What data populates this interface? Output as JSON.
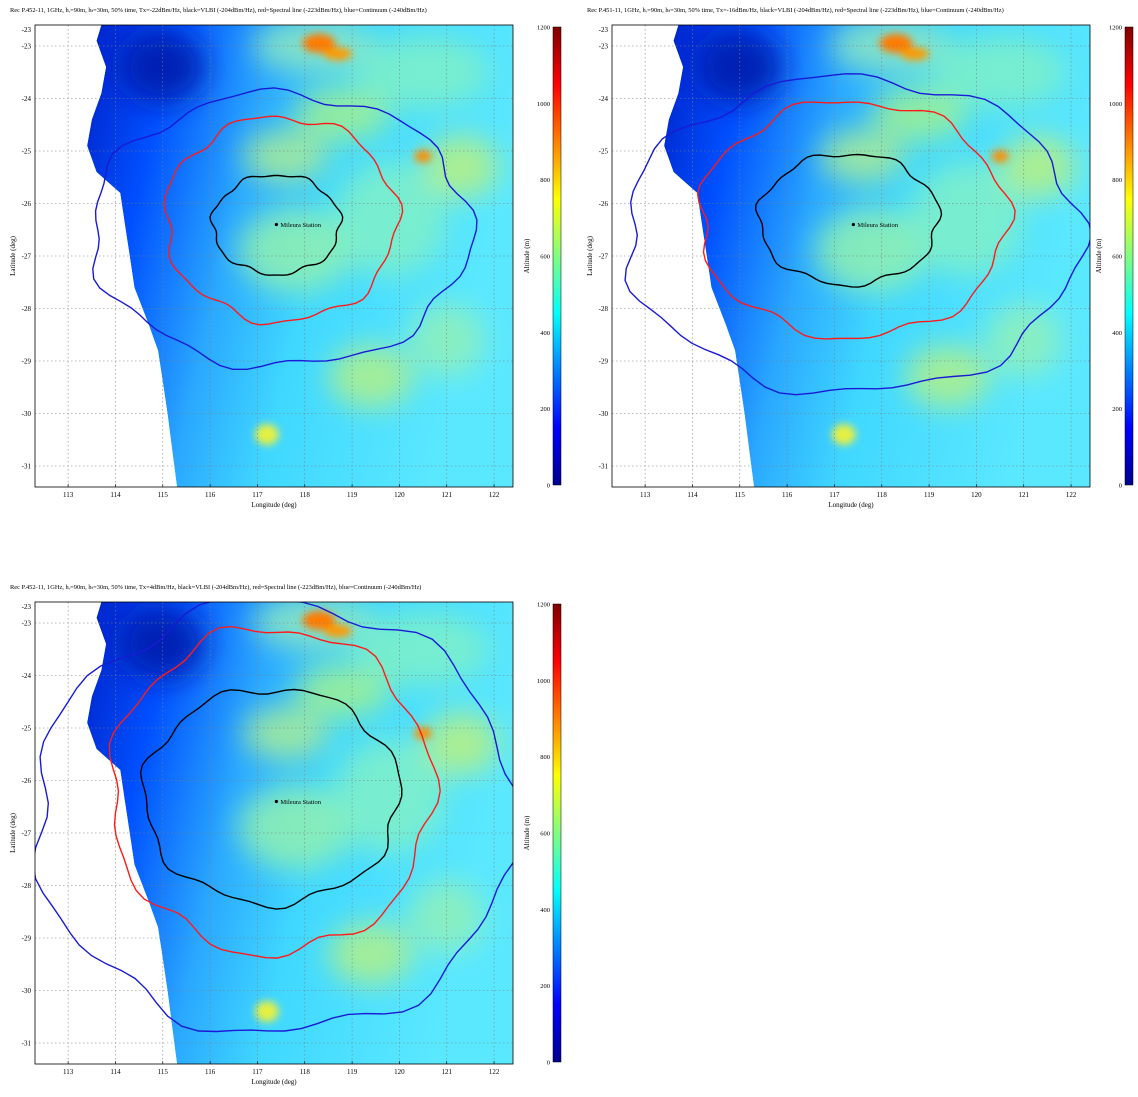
{
  "colors": {
    "ocean": "#ffffff",
    "grid": "#7f7f7f",
    "contour_vlbi": "#000000",
    "contour_spectral": "#ff1a1a",
    "contour_continuum": "#1a1ad6",
    "colormap": [
      "#00008f",
      "#0000ff",
      "#0080ff",
      "#00ffff",
      "#80ff80",
      "#ffff00",
      "#ff8000",
      "#ff0000",
      "#800000"
    ]
  },
  "shared": {
    "xlabel": "Longitude (deg)",
    "ylabel": "Latitude (deg)",
    "colorbar_label": "Altitude (m)",
    "station_label": "Mileura Station",
    "xticks": [
      "113",
      "114",
      "115",
      "116",
      "117",
      "118",
      "119",
      "120",
      "121",
      "122"
    ],
    "yticks": [
      "-23",
      "-23",
      "-24",
      "-25",
      "-26",
      "-27",
      "-28",
      "-29",
      "-30",
      "-31"
    ],
    "cbar_ticks": [
      "1200",
      "1000",
      "800",
      "600",
      "400",
      "200",
      "0"
    ]
  },
  "panels": [
    {
      "title": "Rec P.452-11, 1GHz, hᵣ=90m, hₜ=30m, 50% time, Tx=-22dBm/Hz, black=VLBI (-204dBm/Hz), red=Spectral line (-223dBm/Hz), blue=Continuum (-240dBm/Hz)"
    },
    {
      "title": "Rec P.451-11, 1GHz, hᵣ=90m, hₜ=30m, 50% time, Tx=-16dBm/Hz, black=VLBI (-204dBm/Hz), red=Spectral line (-223dBm/Hz), blue=Continuum (-240dBm/Hz)"
    },
    {
      "title": "Rec P.452-11, 1GHz, hᵣ=90m, hₜ=30m, 50% time, Tx=4dBm/Hz, black=VLBI (-204dBm/Hz), red=Spectral line (-223dBm/Hz), blue=Continuum (-240dBm/Hz)"
    }
  ],
  "chart_data": [
    {
      "type": "heatmap",
      "title": "Rec P.452-11, 1GHz, hr=90m, ht=30m, 50% time, Tx=-22dBm/Hz, black=VLBI (-204dBm/Hz), red=Spectral line (-223dBm/Hz), blue=Continuum (-240dBm/Hz)",
      "xlabel": "Longitude (deg)",
      "ylabel": "Latitude (deg)",
      "colorbar_label": "Altitude (m)",
      "xlim": [
        112.3,
        122.4
      ],
      "ylim": [
        -31.4,
        -22.6
      ],
      "clim": [
        0,
        1200
      ],
      "station": {
        "name": "Mileura Station",
        "lon": 117.4,
        "lat": -26.4
      },
      "contours": [
        {
          "name": "VLBI (-204dBm/Hz)",
          "center": [
            117.4,
            -26.4
          ],
          "r_lon": 1.35,
          "r_lat": 0.95
        },
        {
          "name": "Spectral line (-223dBm/Hz)",
          "center": [
            117.5,
            -26.3
          ],
          "r_lon": 2.45,
          "r_lat": 1.95
        },
        {
          "name": "Continuum (-240dBm/Hz)",
          "center": [
            117.5,
            -26.5
          ],
          "r_lon": 4.0,
          "r_lat": 2.6
        }
      ]
    },
    {
      "type": "heatmap",
      "title": "Rec P.451-11, 1GHz, hr=90m, ht=30m, 50% time, Tx=-16dBm/Hz, black=VLBI (-204dBm/Hz), red=Spectral line (-223dBm/Hz), blue=Continuum (-240dBm/Hz)",
      "xlabel": "Longitude (deg)",
      "ylabel": "Latitude (deg)",
      "colorbar_label": "Altitude (m)",
      "xlim": [
        112.3,
        122.4
      ],
      "ylim": [
        -31.4,
        -22.6
      ],
      "clim": [
        0,
        1200
      ],
      "station": {
        "name": "Mileura Station",
        "lon": 117.4,
        "lat": -26.4
      },
      "contours": [
        {
          "name": "VLBI (-204dBm/Hz)",
          "center": [
            117.3,
            -26.3
          ],
          "r_lon": 1.9,
          "r_lat": 1.25
        },
        {
          "name": "Spectral line (-223dBm/Hz)",
          "center": [
            117.4,
            -26.3
          ],
          "r_lon": 3.25,
          "r_lat": 2.25
        },
        {
          "name": "Continuum (-240dBm/Hz)",
          "center": [
            117.4,
            -26.6
          ],
          "r_lon": 4.8,
          "r_lat": 3.0
        }
      ]
    },
    {
      "type": "heatmap",
      "title": "Rec P.452-11, 1GHz, hr=90m, ht=30m, 50% time, Tx=4dBm/Hz, black=VLBI (-204dBm/Hz), red=Spectral line (-223dBm/Hz), blue=Continuum (-240dBm/Hz)",
      "xlabel": "Longitude (deg)",
      "ylabel": "Latitude (deg)",
      "colorbar_label": "Altitude (m)",
      "xlim": [
        112.3,
        122.4
      ],
      "ylim": [
        -31.4,
        -22.6
      ],
      "clim": [
        0,
        1200
      ],
      "station": {
        "name": "Mileura Station",
        "lon": 117.4,
        "lat": -26.4
      },
      "contours": [
        {
          "name": "VLBI (-204dBm/Hz)",
          "center": [
            117.3,
            -26.3
          ],
          "r_lon": 2.7,
          "r_lat": 2.05
        },
        {
          "name": "Spectral line (-223dBm/Hz)",
          "center": [
            117.3,
            -26.2
          ],
          "r_lon": 3.4,
          "r_lat": 3.1
        },
        {
          "name": "Continuum (-240dBm/Hz)",
          "center": [
            117.4,
            -26.7
          ],
          "r_lon": 5.1,
          "r_lat": 4.1
        }
      ]
    }
  ]
}
